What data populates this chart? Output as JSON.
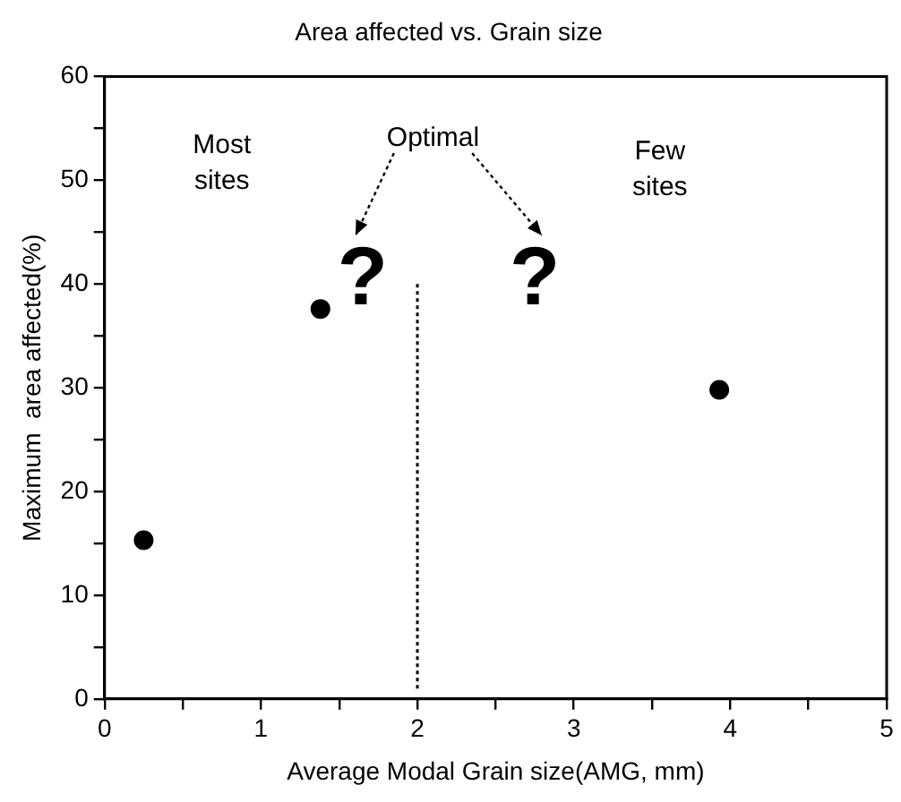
{
  "chart_data": {
    "type": "scatter",
    "title": "Area affected vs. Grain size",
    "xlabel": "Average Modal Grain size(AMG, mm)",
    "ylabel": "Maximum  area affected(%)",
    "x": [
      0.25,
      1.38,
      3.93
    ],
    "values": [
      15.3,
      37.6,
      29.8
    ],
    "color": "#000000",
    "marker": "circle",
    "series": [
      {
        "type": "line",
        "x": [
          2,
          2
        ],
        "values": [
          1,
          40
        ],
        "color": "#000000",
        "line_style": "dotted",
        "marker": "none"
      }
    ],
    "annotations": [
      "Most sites",
      "Optimal",
      "Few sites",
      "?",
      "?"
    ],
    "xlim": [
      0,
      5
    ],
    "xticks": [
      0,
      {
        "value": 0.5,
        "label": null
      },
      1,
      {
        "value": 1.5,
        "label": null
      },
      2,
      {
        "value": 2.5,
        "label": null
      },
      3,
      {
        "value": 3.5,
        "label": null
      },
      4,
      {
        "value": 4.5,
        "label": null
      },
      5
    ],
    "ylim": [
      0,
      60
    ],
    "yticks": [
      0,
      {
        "value": 5,
        "label": null
      },
      10,
      {
        "value": 15,
        "label": null
      },
      20,
      {
        "value": 25,
        "label": null
      },
      30,
      {
        "value": 35,
        "label": null
      },
      40,
      {
        "value": 45,
        "label": null
      },
      50,
      {
        "value": 55,
        "label": null
      },
      60
    ],
    "grid": false,
    "legend": false
  }
}
